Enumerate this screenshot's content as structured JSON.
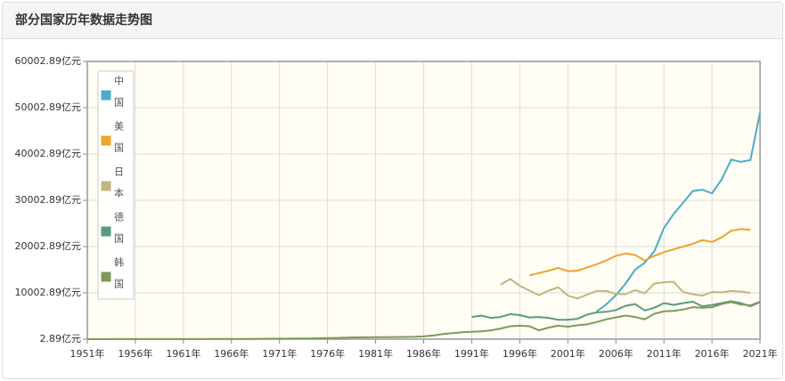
{
  "chart_data": {
    "type": "line",
    "title": "部分国家历年数据走势图",
    "x": [
      1951,
      1952,
      1953,
      1954,
      1955,
      1956,
      1957,
      1958,
      1959,
      1960,
      1961,
      1962,
      1963,
      1964,
      1965,
      1966,
      1967,
      1968,
      1969,
      1970,
      1971,
      1972,
      1973,
      1974,
      1975,
      1976,
      1977,
      1978,
      1979,
      1980,
      1981,
      1982,
      1983,
      1984,
      1985,
      1986,
      1987,
      1988,
      1989,
      1990,
      1991,
      1992,
      1993,
      1994,
      1995,
      1996,
      1997,
      1998,
      1999,
      2000,
      2001,
      2002,
      2003,
      2004,
      2005,
      2006,
      2007,
      2008,
      2009,
      2010,
      2011,
      2012,
      2013,
      2014,
      2015,
      2016,
      2017,
      2018,
      2019,
      2020,
      2021
    ],
    "xlim": [
      1951,
      2021
    ],
    "xticks": [
      {
        "value": 1951,
        "label": "1951年"
      },
      {
        "value": 1956,
        "label": "1956年"
      },
      {
        "value": 1961,
        "label": "1961年"
      },
      {
        "value": 1966,
        "label": "1966年"
      },
      {
        "value": 1971,
        "label": "1971年"
      },
      {
        "value": 1976,
        "label": "1976年"
      },
      {
        "value": 1981,
        "label": "1981年"
      },
      {
        "value": 1986,
        "label": "1986年"
      },
      {
        "value": 1991,
        "label": "1991年"
      },
      {
        "value": 1996,
        "label": "1996年"
      },
      {
        "value": 2001,
        "label": "2001年"
      },
      {
        "value": 2006,
        "label": "2006年"
      },
      {
        "value": 2011,
        "label": "2011年"
      },
      {
        "value": 2016,
        "label": "2016年"
      },
      {
        "value": 2021,
        "label": "2021年"
      }
    ],
    "ylim": [
      2.89,
      60002.89
    ],
    "yticks": [
      {
        "value": 2.89,
        "label": "2.89亿元"
      },
      {
        "value": 10002.89,
        "label": "10002.89亿元"
      },
      {
        "value": 20002.89,
        "label": "20002.89亿元"
      },
      {
        "value": 30002.89,
        "label": "30002.89亿元"
      },
      {
        "value": 40002.89,
        "label": "40002.89亿元"
      },
      {
        "value": 50002.89,
        "label": "50002.89亿元"
      },
      {
        "value": 60002.89,
        "label": "60002.89亿元"
      }
    ],
    "grid": true,
    "legend": "top-left",
    "series": [
      {
        "name": "中国",
        "color": "#4bacc6",
        "values": [
          null,
          null,
          null,
          null,
          null,
          null,
          null,
          null,
          null,
          null,
          null,
          null,
          null,
          null,
          null,
          null,
          null,
          null,
          null,
          null,
          null,
          null,
          null,
          null,
          null,
          null,
          null,
          null,
          null,
          null,
          null,
          null,
          null,
          null,
          null,
          null,
          null,
          null,
          null,
          null,
          null,
          null,
          null,
          null,
          null,
          null,
          null,
          null,
          null,
          null,
          null,
          null,
          null,
          6000,
          7500,
          9500,
          12000,
          15000,
          16500,
          19000,
          24000,
          27000,
          29500,
          32000,
          32300,
          31500,
          34500,
          38800,
          38300,
          38700,
          49000
        ]
      },
      {
        "name": "美国",
        "color": "#f0a22e",
        "values": [
          null,
          null,
          null,
          null,
          null,
          null,
          null,
          null,
          null,
          null,
          null,
          null,
          null,
          null,
          null,
          null,
          null,
          null,
          null,
          null,
          null,
          null,
          null,
          null,
          null,
          null,
          null,
          null,
          null,
          null,
          null,
          null,
          null,
          null,
          null,
          null,
          null,
          null,
          null,
          null,
          null,
          null,
          null,
          null,
          null,
          null,
          13800,
          14300,
          14800,
          15400,
          14700,
          14800,
          15500,
          16200,
          17000,
          18000,
          18500,
          18200,
          17000,
          18000,
          18800,
          19400,
          20000,
          20600,
          21400,
          21000,
          22000,
          23400,
          23800,
          23600,
          null
        ]
      },
      {
        "name": "日本",
        "color": "#c5b47f",
        "values": [
          null,
          null,
          null,
          null,
          null,
          null,
          null,
          null,
          null,
          null,
          null,
          null,
          null,
          null,
          null,
          null,
          null,
          null,
          null,
          null,
          null,
          null,
          null,
          null,
          null,
          null,
          null,
          null,
          null,
          null,
          null,
          null,
          null,
          null,
          null,
          null,
          null,
          null,
          null,
          null,
          null,
          null,
          null,
          11800,
          13000,
          11500,
          10500,
          9500,
          10500,
          11200,
          9400,
          8800,
          9600,
          10400,
          10400,
          9800,
          9700,
          10600,
          9900,
          12000,
          12300,
          12400,
          10200,
          9700,
          9400,
          10200,
          10100,
          10400,
          10300,
          10000,
          null
        ]
      },
      {
        "name": "德国",
        "color": "#5a9b7e",
        "values": [
          null,
          null,
          null,
          null,
          null,
          null,
          null,
          null,
          null,
          null,
          null,
          null,
          null,
          null,
          null,
          null,
          null,
          null,
          null,
          null,
          null,
          null,
          null,
          null,
          null,
          null,
          null,
          null,
          null,
          null,
          null,
          null,
          null,
          null,
          null,
          null,
          null,
          null,
          null,
          null,
          4800,
          5100,
          4600,
          4800,
          5400,
          5200,
          4700,
          4800,
          4600,
          4200,
          4200,
          4400,
          5300,
          5800,
          5900,
          6300,
          7200,
          7600,
          6200,
          6800,
          7800,
          7400,
          7800,
          8100,
          7100,
          7400,
          7800,
          8200,
          7800,
          7100,
          8000
        ]
      },
      {
        "name": "韩国",
        "color": "#7d9a5a",
        "values": [
          10,
          10,
          10,
          15,
          15,
          15,
          20,
          20,
          20,
          25,
          25,
          25,
          30,
          35,
          40,
          45,
          55,
          65,
          80,
          100,
          110,
          120,
          140,
          160,
          200,
          240,
          280,
          330,
          380,
          400,
          420,
          440,
          460,
          480,
          500,
          600,
          800,
          1100,
          1300,
          1500,
          1600,
          1700,
          1900,
          2300,
          2800,
          2900,
          2800,
          1900,
          2500,
          2900,
          2700,
          3000,
          3200,
          3700,
          4300,
          4700,
          5100,
          4800,
          4300,
          5500,
          6000,
          6100,
          6400,
          6900,
          6800,
          6900,
          7600,
          8000,
          7500,
          7300,
          8100
        ]
      }
    ]
  }
}
